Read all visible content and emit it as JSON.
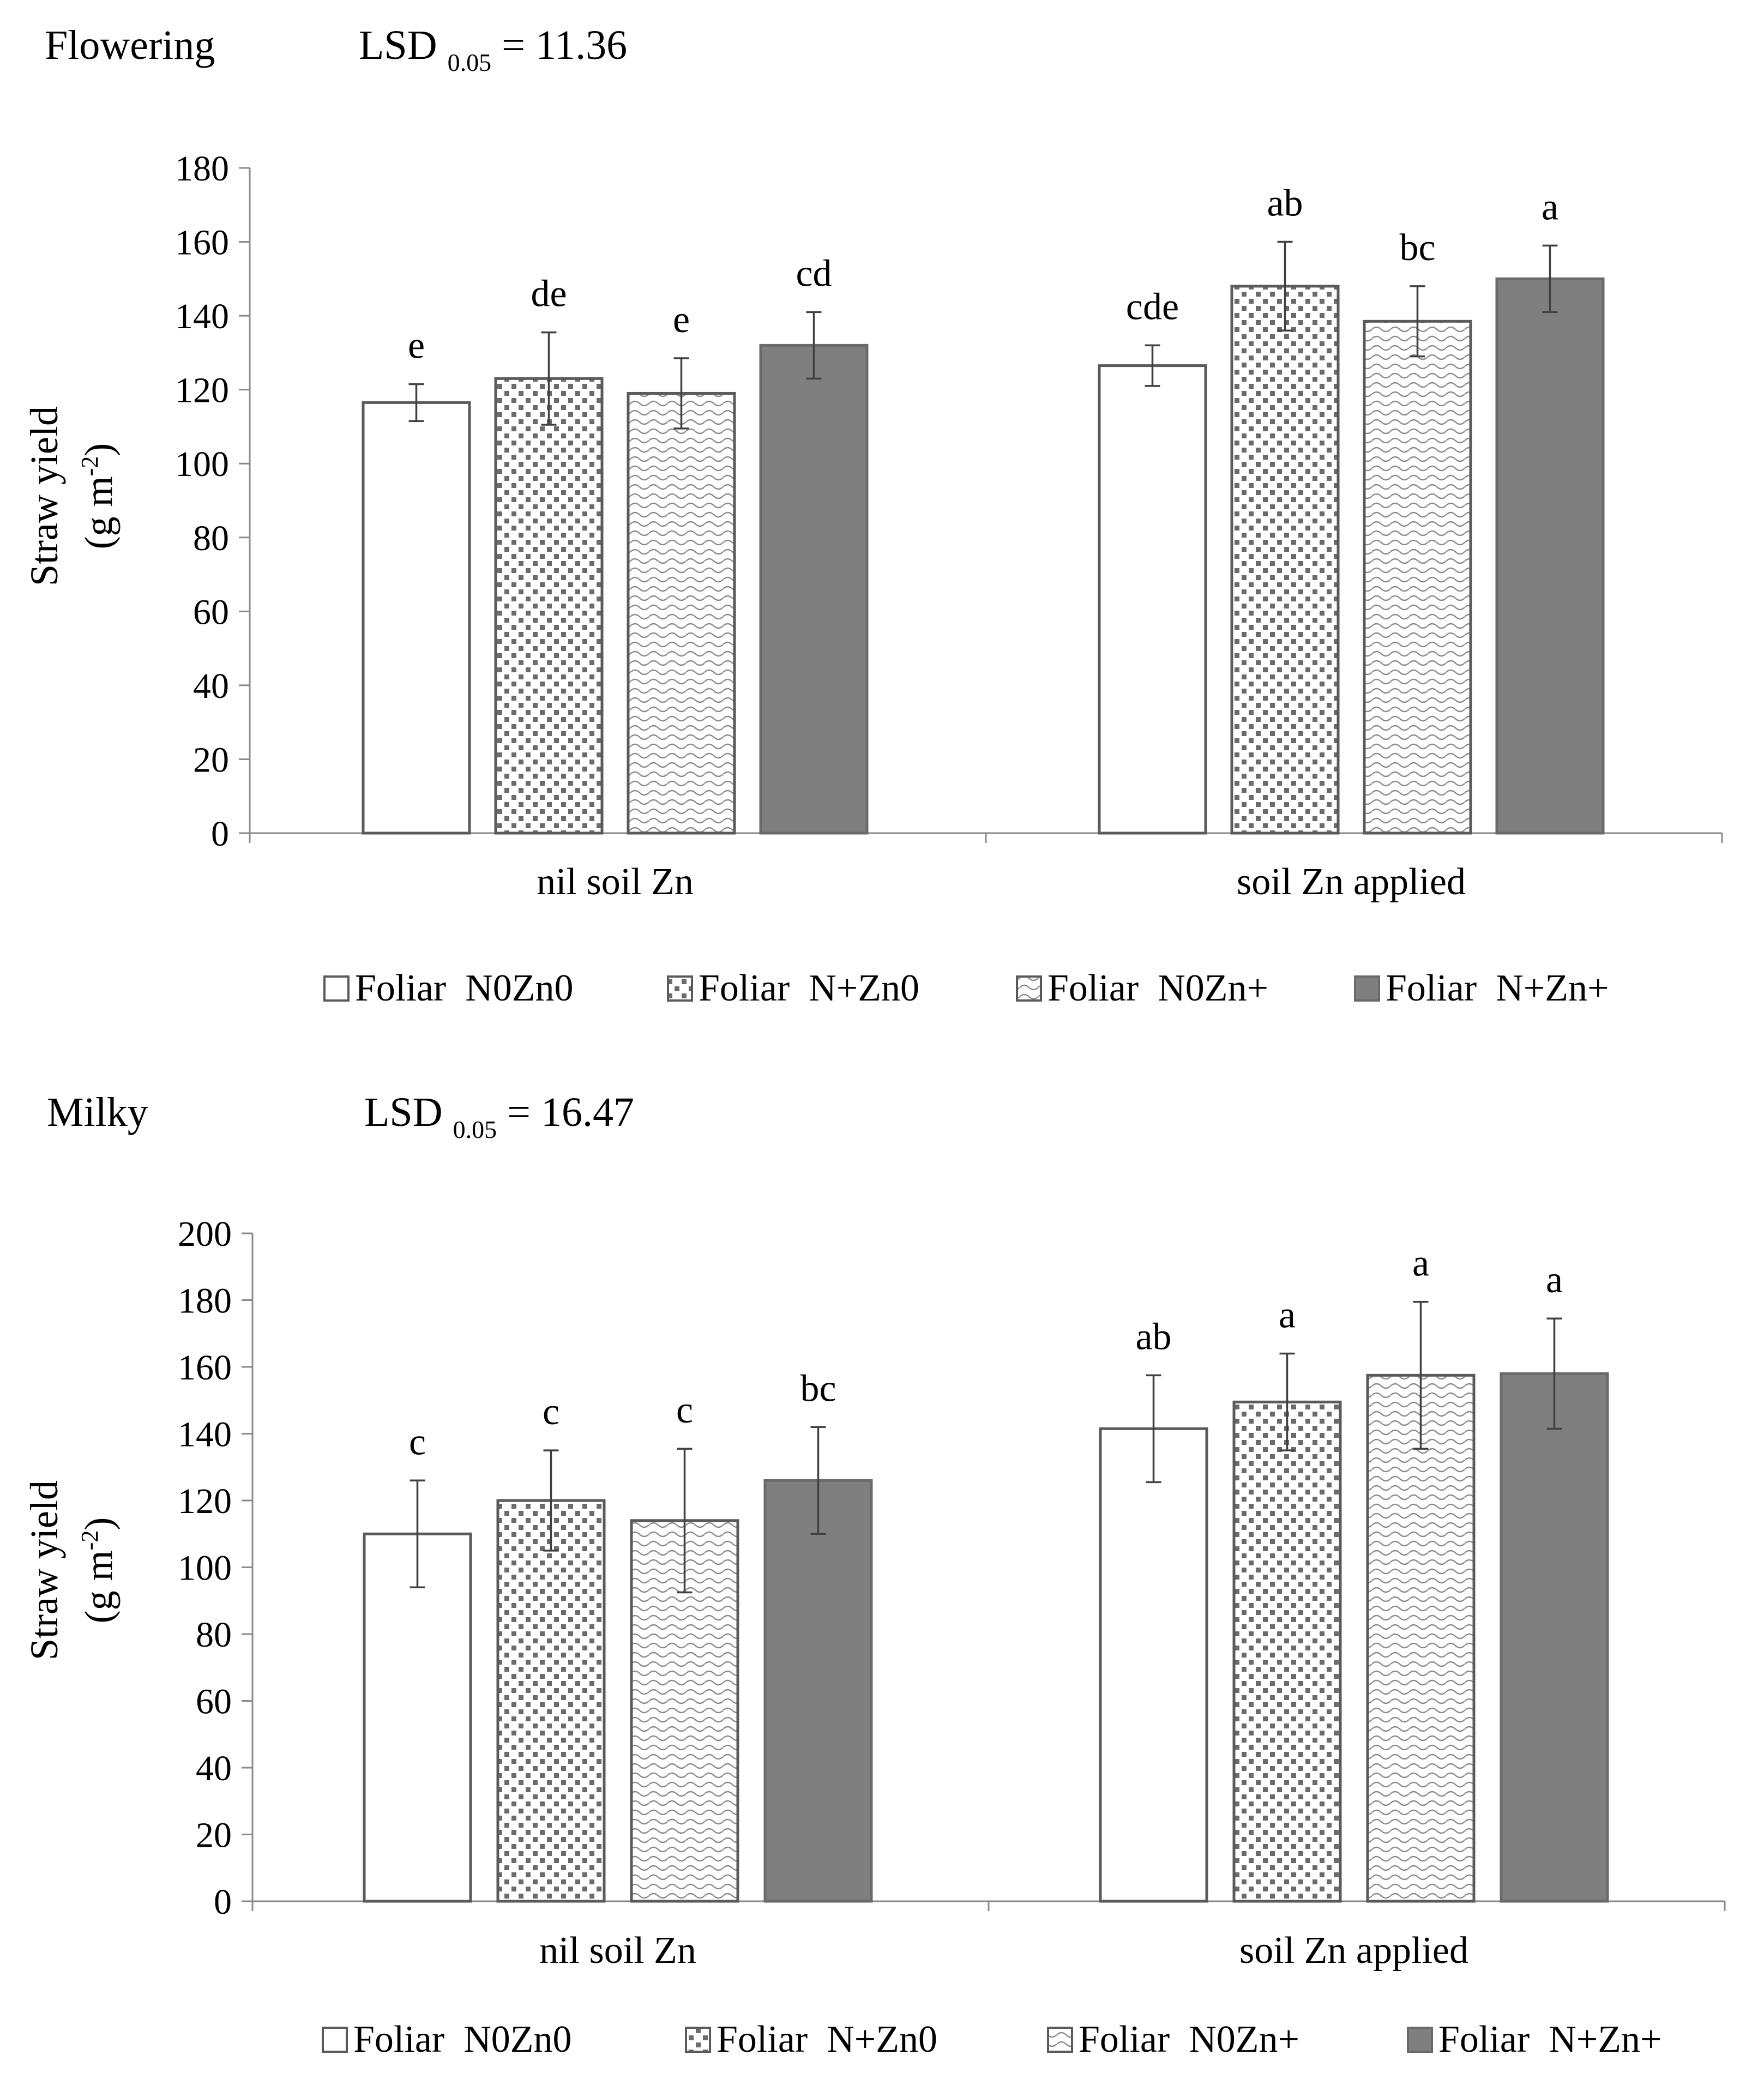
{
  "colors": {
    "axis": "#8a8a8a",
    "bar_outline": "#5a5a5a",
    "solid_fill": "#7f7f7f",
    "pattern_fill": "#6b6b6b",
    "white": "#ffffff",
    "error_bar": "#404040"
  },
  "chart_data": [
    {
      "type": "bar",
      "title": "Flowering",
      "lsd_prefix": "LSD",
      "lsd_sub": "0.05",
      "lsd_rest": " = 11.36",
      "ylabel_line1": "Straw yield",
      "ylabel_line2": "(g m",
      "ylabel_sup": "-2",
      "ylabel_close": ")",
      "xlabel": "",
      "ylim": [
        0,
        180
      ],
      "yticks": [
        0,
        20,
        40,
        60,
        80,
        100,
        120,
        140,
        160,
        180
      ],
      "ytick_labels": [
        "0",
        "20",
        "40",
        "60",
        "80",
        "100",
        "120",
        "140",
        "160",
        "180"
      ],
      "categories": [
        "nil soil Zn",
        "soil Zn applied"
      ],
      "legend_position": "bottom",
      "series": [
        {
          "name": "Foliar  N0Zn0",
          "fill": "white",
          "values": [
            116.5,
            126.5
          ],
          "errors": [
            5,
            5.5
          ],
          "letters": [
            "e",
            "cde"
          ]
        },
        {
          "name": "Foliar  N+Zn0",
          "fill": "dots",
          "values": [
            123,
            148
          ],
          "errors": [
            12.5,
            12
          ],
          "letters": [
            "de",
            "ab"
          ]
        },
        {
          "name": "Foliar  N0Zn+",
          "fill": "waves",
          "values": [
            119,
            138.5
          ],
          "errors": [
            9.5,
            9.5
          ],
          "letters": [
            "e",
            "bc"
          ]
        },
        {
          "name": "Foliar  N+Zn+",
          "fill": "solid",
          "values": [
            132,
            150
          ],
          "errors": [
            9,
            9
          ],
          "letters": [
            "cd",
            "a"
          ]
        }
      ]
    },
    {
      "type": "bar",
      "title": "Milky",
      "lsd_prefix": "LSD",
      "lsd_sub": "0.05",
      "lsd_rest": " = 16.47",
      "ylabel_line1": "Straw yield",
      "ylabel_line2": "(g m",
      "ylabel_sup": "-2",
      "ylabel_close": ")",
      "xlabel": "",
      "ylim": [
        0,
        200
      ],
      "yticks": [
        0,
        20,
        40,
        60,
        80,
        100,
        120,
        140,
        160,
        180,
        200
      ],
      "ytick_labels": [
        "0",
        "20",
        "40",
        "60",
        "80",
        "100",
        "120",
        "140",
        "160",
        "180",
        "200"
      ],
      "categories": [
        "nil soil Zn",
        "soil Zn applied"
      ],
      "legend_position": "bottom",
      "series": [
        {
          "name": "Foliar  N0Zn0",
          "fill": "white",
          "values": [
            110,
            141.5
          ],
          "errors": [
            16,
            16
          ],
          "letters": [
            "c",
            "ab"
          ]
        },
        {
          "name": "Foliar  N+Zn0",
          "fill": "dots",
          "values": [
            120,
            149.5
          ],
          "errors": [
            15,
            14.5
          ],
          "letters": [
            "c",
            "a"
          ]
        },
        {
          "name": "Foliar  N0Zn+",
          "fill": "waves",
          "values": [
            114,
            157.5
          ],
          "errors": [
            21.5,
            22
          ],
          "letters": [
            "c",
            "a"
          ]
        },
        {
          "name": "Foliar  N+Zn+",
          "fill": "solid",
          "values": [
            126,
            158
          ],
          "errors": [
            16,
            16.5
          ],
          "letters": [
            "bc",
            "a"
          ]
        }
      ]
    }
  ]
}
